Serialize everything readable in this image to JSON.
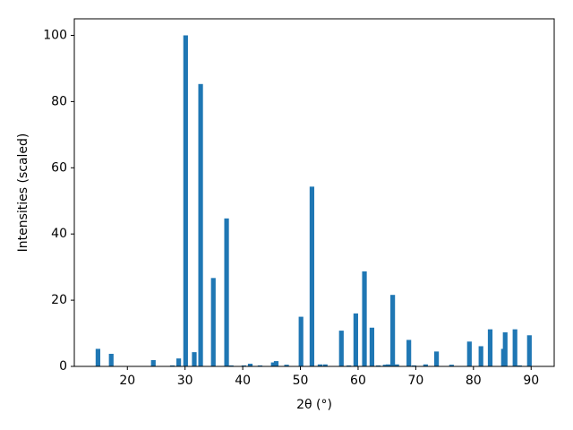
{
  "chart_data": {
    "type": "bar",
    "x_label": "2θ (°)",
    "y_label": "Intensities (scaled)",
    "color": "#1f77b4",
    "x": [
      14.9,
      17.2,
      24.5,
      27.8,
      28.9,
      30.1,
      31.6,
      32.7,
      34.9,
      37.2,
      38.0,
      40.2,
      41.3,
      43.0,
      45.3,
      45.8,
      47.6,
      50.1,
      52.0,
      53.4,
      54.3,
      57.1,
      58.4,
      59.6,
      61.1,
      62.4,
      63.5,
      64.7,
      65.2,
      66.0,
      66.7,
      68.8,
      69.7,
      71.7,
      73.6,
      76.2,
      79.3,
      81.3,
      82.9,
      85.2,
      85.5,
      87.2,
      88.0,
      89.7
    ],
    "values": [
      5.3,
      3.8,
      1.9,
      0.3,
      2.4,
      100,
      4.3,
      85.3,
      26.7,
      44.7,
      0.3,
      0.3,
      0.8,
      0.3,
      1.2,
      1.6,
      0.5,
      15.0,
      54.3,
      0.6,
      0.6,
      10.8,
      0.3,
      16.0,
      28.7,
      11.7,
      0.3,
      0.5,
      0.6,
      21.6,
      0.6,
      8.0,
      0.3,
      0.6,
      4.5,
      0.5,
      7.5,
      6.1,
      11.2,
      5.3,
      10.3,
      11.2,
      0.3,
      9.4
    ],
    "xlim": [
      10.8,
      94.0
    ],
    "ylim": [
      0,
      105
    ],
    "xticks": [
      20,
      30,
      40,
      50,
      60,
      70,
      80,
      90
    ],
    "yticks": [
      0,
      20,
      40,
      60,
      80,
      100
    ]
  }
}
